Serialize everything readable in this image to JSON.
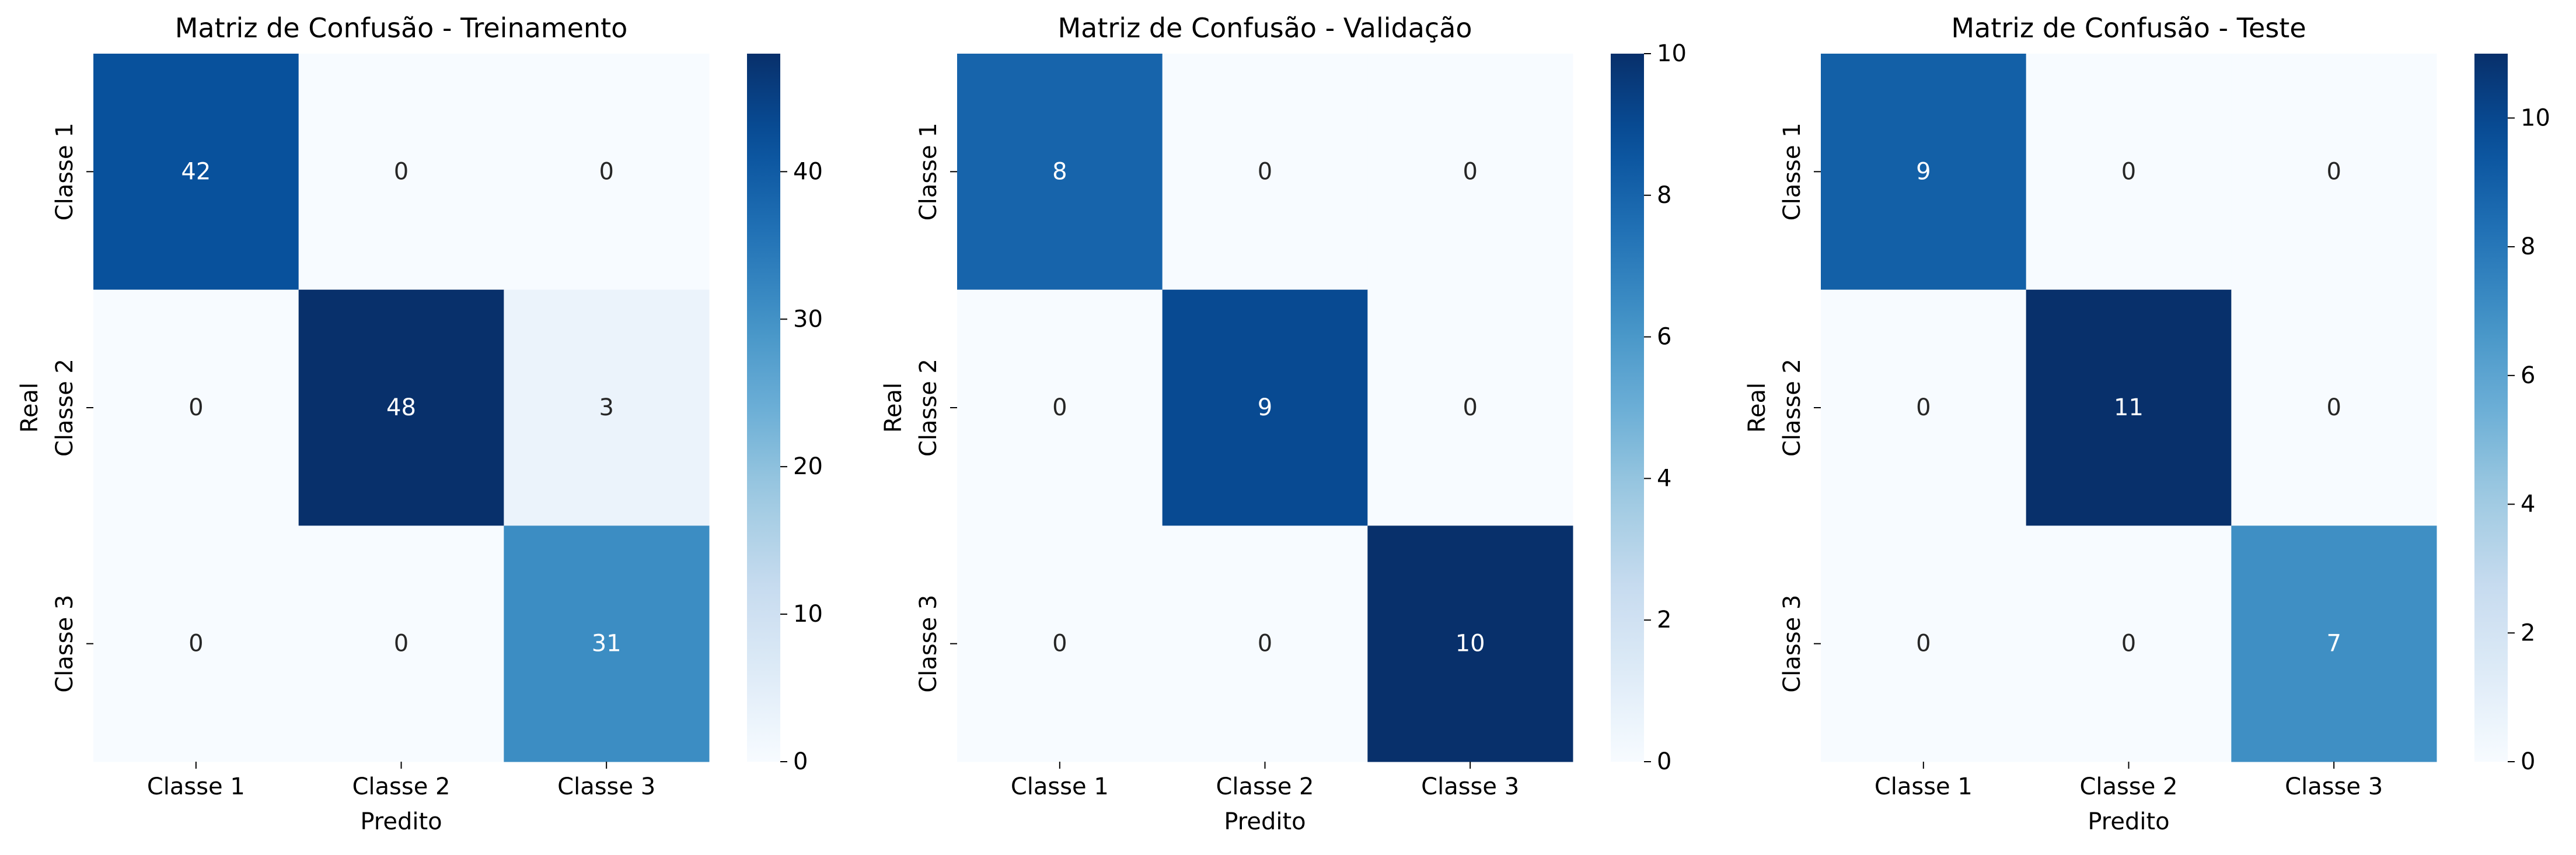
{
  "chart_data": [
    {
      "type": "heatmap",
      "title": "Matriz de Confusão - Treinamento",
      "xlabel": "Predito",
      "ylabel": "Real",
      "x_categories": [
        "Classe 1",
        "Classe 2",
        "Classe 3"
      ],
      "y_categories": [
        "Classe 1",
        "Classe 2",
        "Classe 3"
      ],
      "values": [
        [
          42,
          0,
          0
        ],
        [
          0,
          48,
          3
        ],
        [
          0,
          0,
          31
        ]
      ],
      "colormap": "Blues",
      "colorbar": {
        "min": 0,
        "max": 48,
        "ticks": [
          0,
          10,
          20,
          30,
          40
        ]
      }
    },
    {
      "type": "heatmap",
      "title": "Matriz de Confusão - Validação",
      "xlabel": "Predito",
      "ylabel": "Real",
      "x_categories": [
        "Classe 1",
        "Classe 2",
        "Classe 3"
      ],
      "y_categories": [
        "Classe 1",
        "Classe 2",
        "Classe 3"
      ],
      "values": [
        [
          8,
          0,
          0
        ],
        [
          0,
          9,
          0
        ],
        [
          0,
          0,
          10
        ]
      ],
      "colormap": "Blues",
      "colorbar": {
        "min": 0,
        "max": 10,
        "ticks": [
          0,
          2,
          4,
          6,
          8,
          10
        ]
      }
    },
    {
      "type": "heatmap",
      "title": "Matriz de Confusão - Teste",
      "xlabel": "Predito",
      "ylabel": "Real",
      "x_categories": [
        "Classe 1",
        "Classe 2",
        "Classe 3"
      ],
      "y_categories": [
        "Classe 1",
        "Classe 2",
        "Classe 3"
      ],
      "values": [
        [
          9,
          0,
          0
        ],
        [
          0,
          11,
          0
        ],
        [
          0,
          0,
          7
        ]
      ],
      "colormap": "Blues",
      "colorbar": {
        "min": 0,
        "max": 11,
        "ticks": [
          0,
          2,
          4,
          6,
          8,
          10
        ]
      }
    }
  ]
}
